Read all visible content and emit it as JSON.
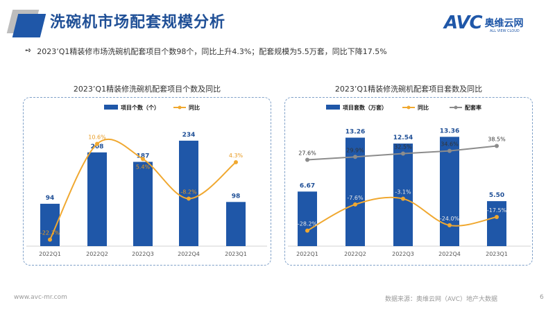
{
  "header": {
    "title": "洗碗机市场配套规模分析",
    "logo_text": "AVC",
    "logo_cn": "奥维云网",
    "logo_en": "ALL VIEW CLOUD"
  },
  "bullet": {
    "icon": "double-arrow-icon",
    "text": "2023’Q1精装修市场洗碗机配套项目个数98个，同比上升4.3%；配套规模为5.5万套，同比下降17.5%"
  },
  "colors": {
    "bar": "#1f57a8",
    "yoy": "#f0a830",
    "rate": "#8c8c8c"
  },
  "chart_data": [
    {
      "type": "bar+line",
      "title": "2023’Q1精装修洗碗机配套项目个数及同比",
      "categories": [
        "2022Q1",
        "2022Q2",
        "2022Q3",
        "2022Q4",
        "2023Q1"
      ],
      "series": [
        {
          "name": "项目个数（个）",
          "kind": "bar",
          "values": [
            94,
            208,
            187,
            234,
            98
          ],
          "labels": [
            "94",
            "208",
            "187",
            "234",
            "98"
          ]
        },
        {
          "name": "同比",
          "kind": "line",
          "values": [
            -22.3,
            10.6,
            5.4,
            -8.2,
            4.3
          ],
          "labels": [
            "-22.3%",
            "10.6%",
            "5.4%",
            "-8.2%",
            "4.3%"
          ]
        }
      ],
      "legend": "top",
      "grid": false
    },
    {
      "type": "bar+line",
      "title": "2023’Q1精装修洗碗机配套项目套数及同比",
      "categories": [
        "2022Q1",
        "2022Q2",
        "2022Q3",
        "2022Q4",
        "2023Q1"
      ],
      "series": [
        {
          "name": "项目套数（万套）",
          "kind": "bar",
          "values": [
            6.67,
            13.26,
            12.54,
            13.36,
            5.5
          ],
          "labels": [
            "6.67",
            "13.26",
            "12.54",
            "13.36",
            "5.50"
          ]
        },
        {
          "name": "同比",
          "kind": "line",
          "values": [
            -28.2,
            -7.6,
            -3.1,
            -24.0,
            -17.5
          ],
          "labels": [
            "-28.2%",
            "-7.6%",
            "-3.1%",
            "-24.0%",
            "-17.5%"
          ]
        },
        {
          "name": "配套率",
          "kind": "line",
          "values": [
            27.6,
            29.9,
            32.5,
            34.6,
            38.5
          ],
          "labels": [
            "27.6%",
            "29.9%",
            "32.5%",
            "34.6%",
            "38.5%"
          ]
        }
      ],
      "legend": "top",
      "grid": false
    }
  ],
  "footer": {
    "website": "www.avc-mr.com",
    "source": "数据来源：奥维云网（AVC）地产大数据",
    "page": "6"
  }
}
